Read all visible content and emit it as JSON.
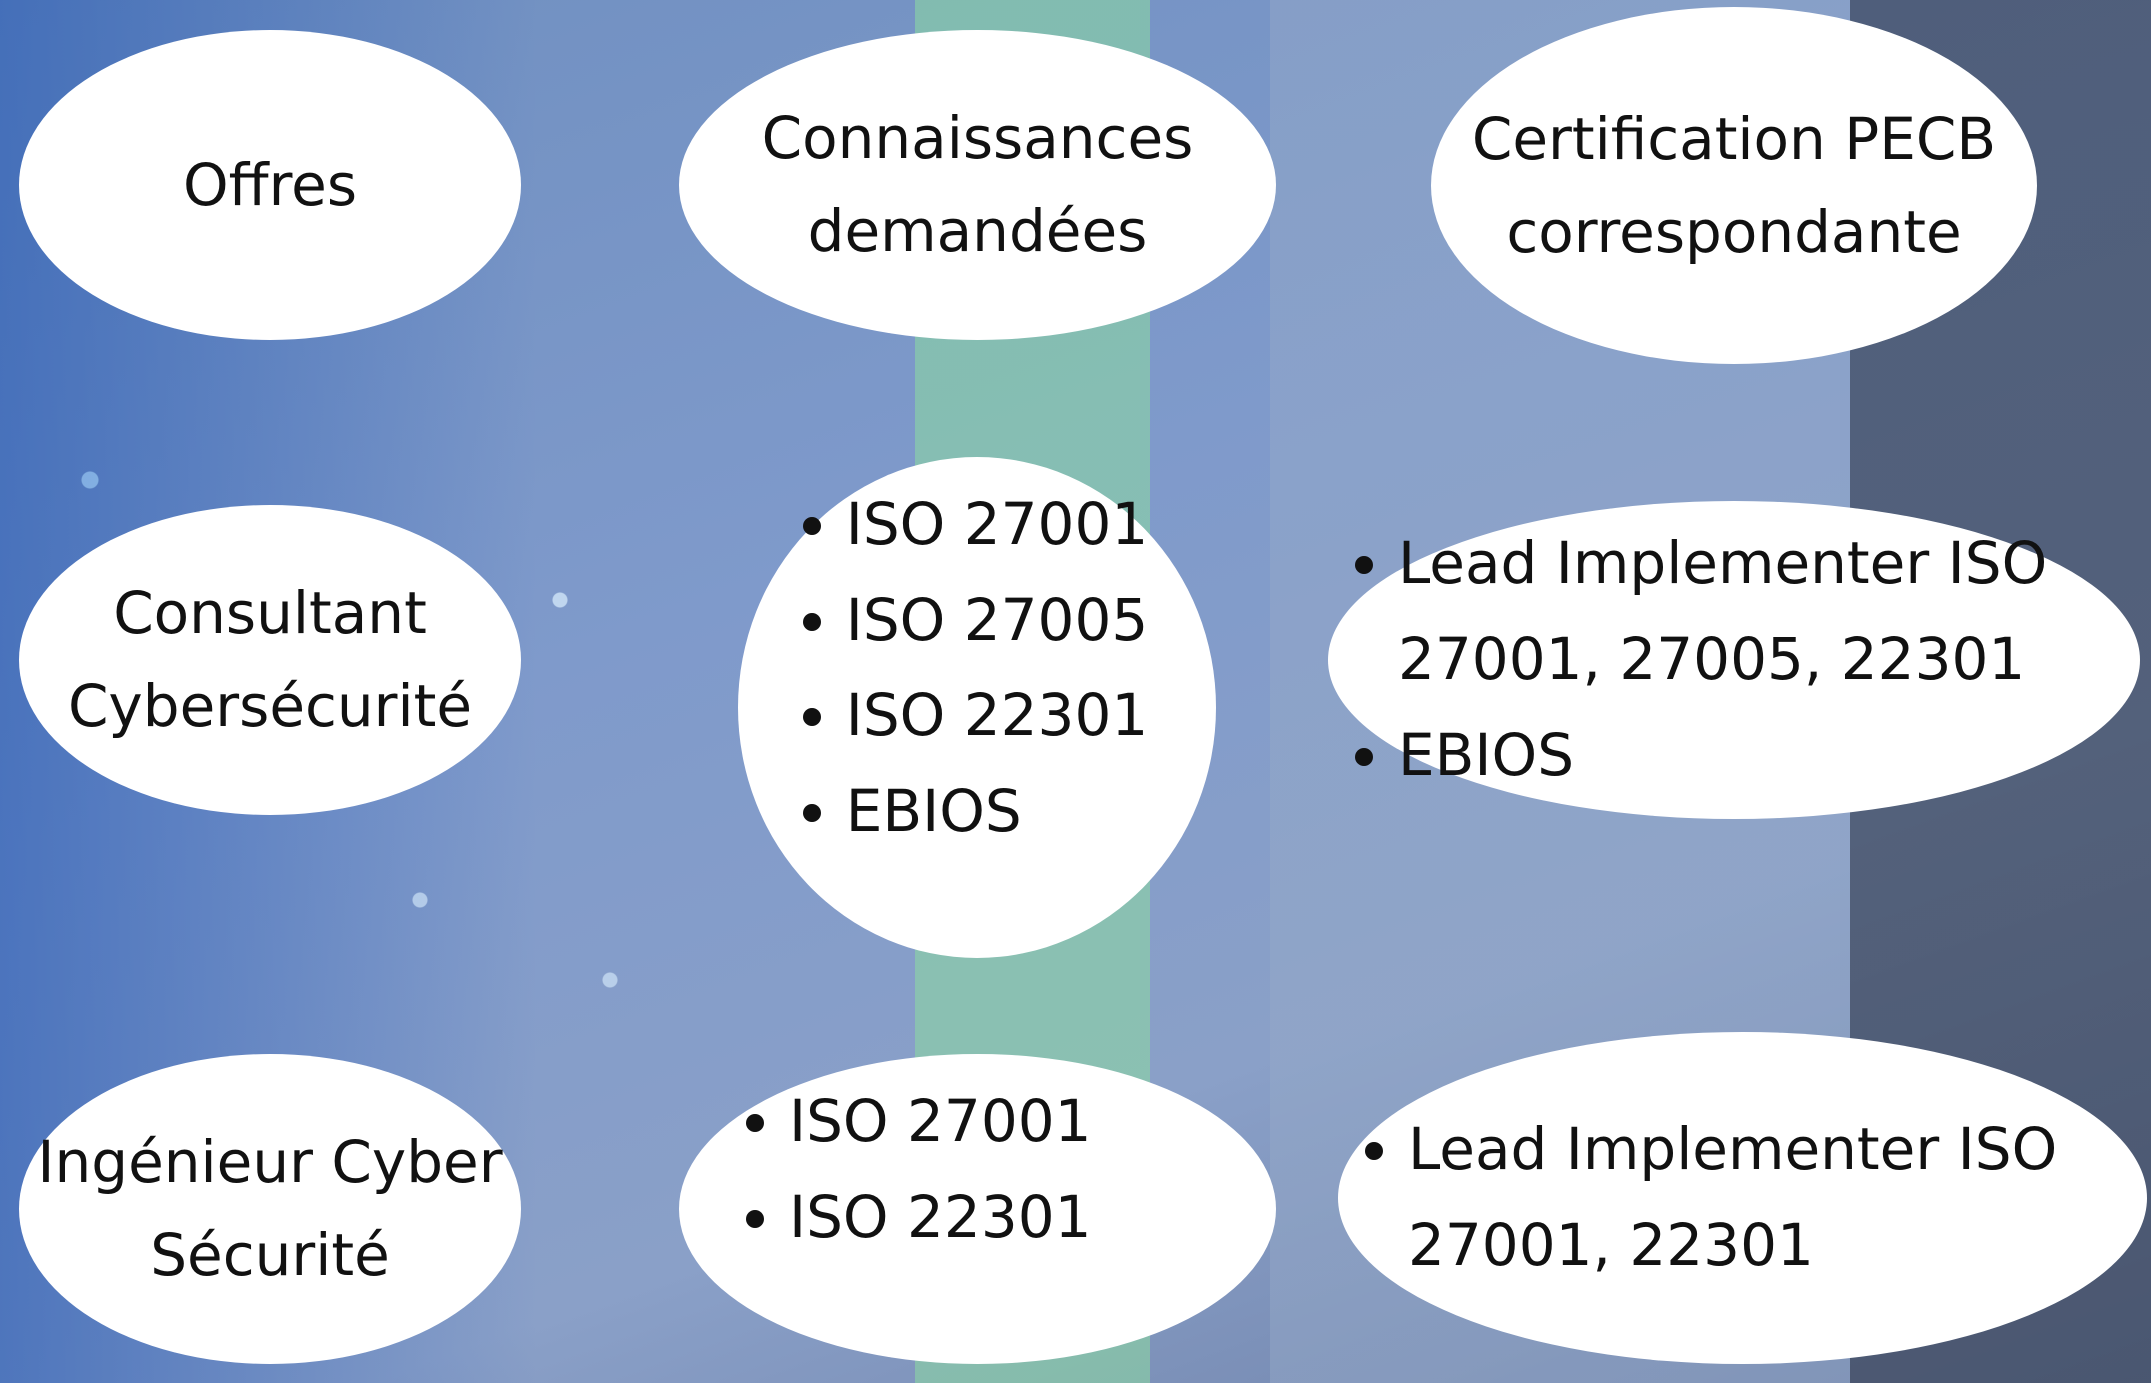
{
  "header": {
    "offers": "Offres",
    "knowledge": "Connaissances demandées",
    "certification": "Certification PECB correspondante"
  },
  "rows": [
    {
      "offer": "Consultant Cybersécurité",
      "knowledge": [
        "ISO 27001",
        "ISO 27005",
        "ISO 22301",
        "EBIOS"
      ],
      "certification": [
        "Lead Implementer ISO 27001, 27005, 22301",
        "EBIOS"
      ]
    },
    {
      "offer": "Ingénieur Cyber Sécurité",
      "knowledge": [
        "ISO 27001",
        "ISO 22301"
      ],
      "certification": [
        "Lead Implementer ISO 27001, 22301"
      ]
    }
  ]
}
